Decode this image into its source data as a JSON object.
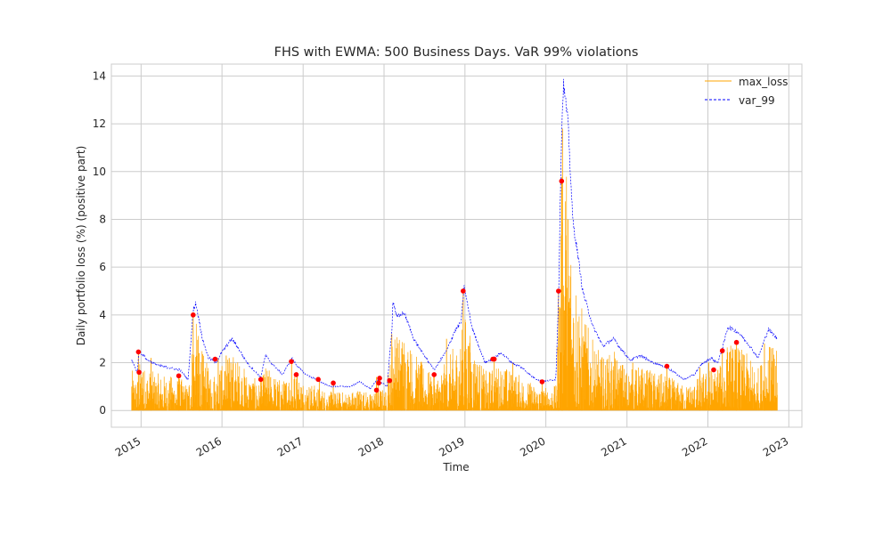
{
  "chart_data": {
    "type": "line",
    "title": "FHS with EWMA: 500 Business Days. VaR 99% violations",
    "xlabel": "Time",
    "ylabel": "Daily portfolio loss (%) (positive part)",
    "xlim": [
      "2014-08-20",
      "2023-03-01"
    ],
    "ylim": [
      -0.7,
      14.5
    ],
    "x_ticks": [
      {
        "date": "2015-01-01",
        "label": "2015"
      },
      {
        "date": "2016-01-01",
        "label": "2016"
      },
      {
        "date": "2017-01-01",
        "label": "2017"
      },
      {
        "date": "2018-01-01",
        "label": "2018"
      },
      {
        "date": "2019-01-01",
        "label": "2019"
      },
      {
        "date": "2020-01-01",
        "label": "2020"
      },
      {
        "date": "2021-01-01",
        "label": "2021"
      },
      {
        "date": "2022-01-01",
        "label": "2022"
      },
      {
        "date": "2023-01-01",
        "label": "2023"
      }
    ],
    "y_ticks": [
      0,
      2,
      4,
      6,
      8,
      10,
      12,
      14
    ],
    "grid": true,
    "legend_position": "top-right",
    "series": [
      {
        "name": "max_loss",
        "color": "#ffa500",
        "style": "solid",
        "peaks": [
          [
            "2014-11-20",
            1.0
          ],
          [
            "2014-12-20",
            2.4
          ],
          [
            "2015-01-10",
            1.6
          ],
          [
            "2015-02-15",
            2.2
          ],
          [
            "2015-06-20",
            1.5
          ],
          [
            "2015-08-24",
            4.0
          ],
          [
            "2015-09-20",
            2.4
          ],
          [
            "2015-12-15",
            2.2
          ],
          [
            "2016-01-20",
            2.3
          ],
          [
            "2016-02-10",
            2.0
          ],
          [
            "2016-06-24",
            1.4
          ],
          [
            "2016-11-10",
            2.1
          ],
          [
            "2016-12-05",
            1.6
          ],
          [
            "2017-03-15",
            1.4
          ],
          [
            "2017-05-17",
            1.2
          ],
          [
            "2017-11-28",
            1.4
          ],
          [
            "2017-12-05",
            1.3
          ],
          [
            "2018-01-20",
            1.5
          ],
          [
            "2018-02-05",
            3.2
          ],
          [
            "2018-03-22",
            2.6
          ],
          [
            "2018-08-15",
            1.5
          ],
          [
            "2018-10-10",
            3.0
          ],
          [
            "2018-12-24",
            5.0
          ],
          [
            "2019-05-13",
            2.2
          ],
          [
            "2019-08-05",
            2.0
          ],
          [
            "2019-12-15",
            1.2
          ],
          [
            "2020-02-27",
            5.0
          ],
          [
            "2020-03-12",
            9.6
          ],
          [
            "2020-03-16",
            11.8
          ],
          [
            "2020-04-15",
            3.8
          ],
          [
            "2020-06-11",
            2.8
          ],
          [
            "2020-09-10",
            2.2
          ],
          [
            "2021-01-27",
            2.0
          ],
          [
            "2021-06-30",
            1.9
          ],
          [
            "2021-11-26",
            1.8
          ],
          [
            "2022-01-05",
            2.0
          ],
          [
            "2022-02-15",
            1.7
          ],
          [
            "2022-03-07",
            2.5
          ],
          [
            "2022-05-10",
            2.9
          ],
          [
            "2022-09-13",
            2.8
          ],
          [
            "2022-10-15",
            2.6
          ]
        ]
      },
      {
        "name": "var_99",
        "color": "#0000ff",
        "style": "dashed",
        "points": [
          [
            "2014-11-20",
            2.1
          ],
          [
            "2014-12-15",
            1.6
          ],
          [
            "2014-12-22",
            2.5
          ],
          [
            "2015-02-01",
            2.1
          ],
          [
            "2015-03-15",
            1.9
          ],
          [
            "2015-05-01",
            1.8
          ],
          [
            "2015-06-25",
            1.7
          ],
          [
            "2015-08-01",
            1.3
          ],
          [
            "2015-08-24",
            4.2
          ],
          [
            "2015-09-05",
            4.5
          ],
          [
            "2015-10-05",
            3.0
          ],
          [
            "2015-11-01",
            2.2
          ],
          [
            "2015-12-05",
            2.0
          ],
          [
            "2016-01-05",
            2.5
          ],
          [
            "2016-02-15",
            3.0
          ],
          [
            "2016-03-15",
            2.6
          ],
          [
            "2016-05-01",
            1.9
          ],
          [
            "2016-06-24",
            1.4
          ],
          [
            "2016-07-15",
            2.3
          ],
          [
            "2016-08-10",
            2.0
          ],
          [
            "2016-10-01",
            1.5
          ],
          [
            "2016-11-10",
            2.2
          ],
          [
            "2016-12-10",
            1.8
          ],
          [
            "2017-01-15",
            1.5
          ],
          [
            "2017-03-01",
            1.3
          ],
          [
            "2017-05-01",
            1.0
          ],
          [
            "2017-08-01",
            1.0
          ],
          [
            "2017-09-15",
            1.2
          ],
          [
            "2017-11-01",
            0.9
          ],
          [
            "2017-12-01",
            1.3
          ],
          [
            "2018-01-15",
            1.0
          ],
          [
            "2018-02-06",
            3.5
          ],
          [
            "2018-02-10",
            4.6
          ],
          [
            "2018-03-01",
            3.9
          ],
          [
            "2018-04-01",
            4.1
          ],
          [
            "2018-05-15",
            3.0
          ],
          [
            "2018-07-01",
            2.3
          ],
          [
            "2018-08-15",
            1.7
          ],
          [
            "2018-10-10",
            2.5
          ],
          [
            "2018-11-15",
            3.3
          ],
          [
            "2018-12-15",
            3.7
          ],
          [
            "2018-12-28",
            5.2
          ],
          [
            "2019-02-01",
            3.5
          ],
          [
            "2019-04-01",
            2.0
          ],
          [
            "2019-05-10",
            2.2
          ],
          [
            "2019-06-15",
            2.4
          ],
          [
            "2019-08-01",
            2.0
          ],
          [
            "2019-09-15",
            1.8
          ],
          [
            "2019-11-01",
            1.4
          ],
          [
            "2019-12-15",
            1.2
          ],
          [
            "2020-02-15",
            1.3
          ],
          [
            "2020-02-28",
            5.0
          ],
          [
            "2020-03-10",
            11.0
          ],
          [
            "2020-03-20",
            13.7
          ],
          [
            "2020-04-10",
            12.0
          ],
          [
            "2020-05-01",
            8.0
          ],
          [
            "2020-06-01",
            6.0
          ],
          [
            "2020-06-15",
            5.0
          ],
          [
            "2020-08-01",
            3.5
          ],
          [
            "2020-09-15",
            2.7
          ],
          [
            "2020-11-01",
            3.0
          ],
          [
            "2021-01-15",
            2.1
          ],
          [
            "2021-03-01",
            2.3
          ],
          [
            "2021-05-01",
            2.0
          ],
          [
            "2021-07-01",
            1.8
          ],
          [
            "2021-09-15",
            1.3
          ],
          [
            "2021-11-01",
            1.5
          ],
          [
            "2021-12-01",
            1.9
          ],
          [
            "2022-01-15",
            2.2
          ],
          [
            "2022-02-15",
            2.0
          ],
          [
            "2022-03-07",
            2.6
          ],
          [
            "2022-04-01",
            3.5
          ],
          [
            "2022-05-15",
            3.3
          ],
          [
            "2022-07-01",
            2.8
          ],
          [
            "2022-08-15",
            2.2
          ],
          [
            "2022-10-01",
            3.4
          ],
          [
            "2022-11-10",
            3.0
          ]
        ]
      },
      {
        "name": "violations",
        "color": "#ff0000",
        "style": "marker",
        "points": [
          [
            "2014-12-20",
            2.45
          ],
          [
            "2014-12-23",
            1.6
          ],
          [
            "2015-06-20",
            1.45
          ],
          [
            "2015-08-24",
            4.0
          ],
          [
            "2015-12-01",
            2.15
          ],
          [
            "2016-06-24",
            1.3
          ],
          [
            "2016-11-09",
            2.05
          ],
          [
            "2016-12-01",
            1.5
          ],
          [
            "2017-03-10",
            1.3
          ],
          [
            "2017-05-17",
            1.15
          ],
          [
            "2017-11-28",
            0.85
          ],
          [
            "2017-12-08",
            1.15
          ],
          [
            "2017-12-12",
            1.35
          ],
          [
            "2018-01-26",
            1.25
          ],
          [
            "2018-08-15",
            1.5
          ],
          [
            "2018-12-24",
            5.0
          ],
          [
            "2019-05-07",
            2.15
          ],
          [
            "2019-05-13",
            2.15
          ],
          [
            "2019-12-15",
            1.2
          ],
          [
            "2020-02-27",
            5.0
          ],
          [
            "2020-03-12",
            9.6
          ],
          [
            "2021-06-30",
            1.85
          ],
          [
            "2022-01-27",
            1.7
          ],
          [
            "2022-03-07",
            2.5
          ],
          [
            "2022-05-10",
            2.85
          ]
        ]
      }
    ]
  }
}
